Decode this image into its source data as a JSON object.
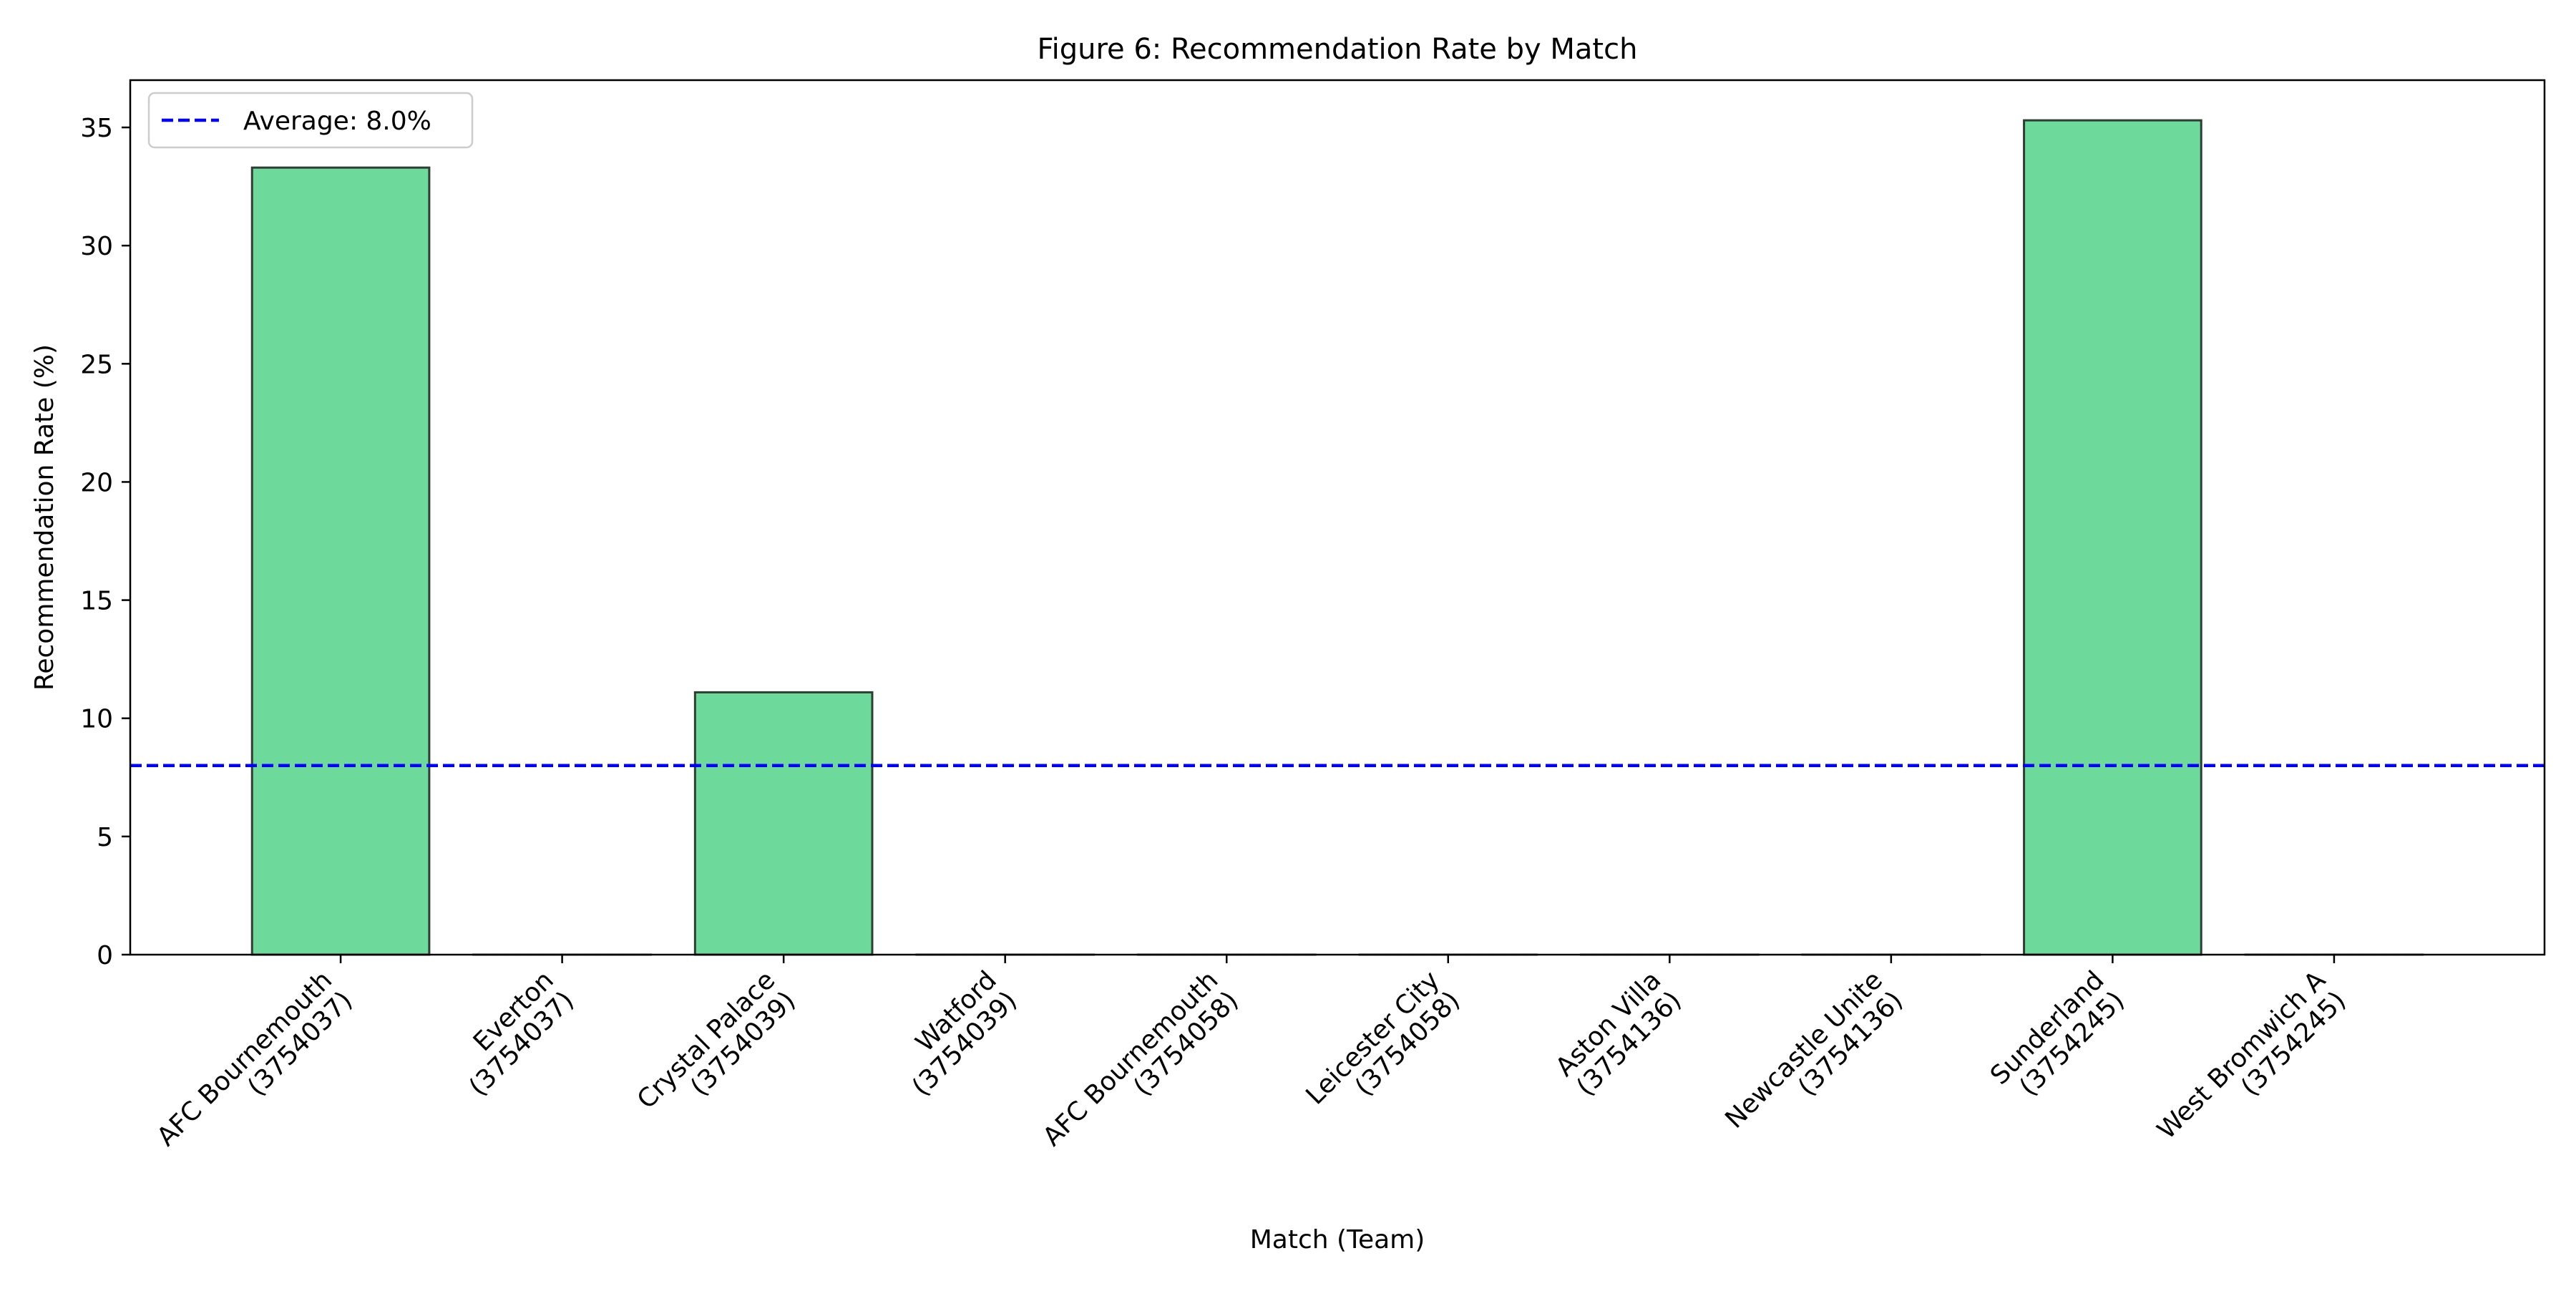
{
  "chart_data": {
    "type": "bar",
    "title": "Figure 6: Recommendation Rate by Match",
    "xlabel": "Match (Team)",
    "ylabel": "Recommendation Rate (%)",
    "categories": [
      [
        "AFC Bournemouth",
        "(3754037)"
      ],
      [
        "Everton",
        "(3754037)"
      ],
      [
        "Crystal Palace",
        "(3754039)"
      ],
      [
        "Watford",
        "(3754039)"
      ],
      [
        "AFC Bournemouth",
        "(3754058)"
      ],
      [
        "Leicester City",
        "(3754058)"
      ],
      [
        "Aston Villa",
        "(3754136)"
      ],
      [
        "Newcastle Unite",
        "(3754136)"
      ],
      [
        "Sunderland",
        "(3754245)"
      ],
      [
        "West Bromwich A",
        "(3754245)"
      ]
    ],
    "values": [
      33.3,
      0,
      11.1,
      0,
      0,
      0,
      0,
      0,
      35.3,
      0
    ],
    "ylim": [
      0,
      37
    ],
    "yticks": [
      0,
      5,
      10,
      15,
      20,
      25,
      30,
      35
    ],
    "average": {
      "value": 8.0,
      "label": "Average: 8.0%",
      "color": "#0000ff",
      "style": "dashed"
    },
    "legend": {
      "placement": "top-left",
      "entries": [
        "Average: 8.0%"
      ]
    },
    "bar_color": "#6dd99a",
    "bar_edge_color": "#2f3d33",
    "grid": false
  }
}
